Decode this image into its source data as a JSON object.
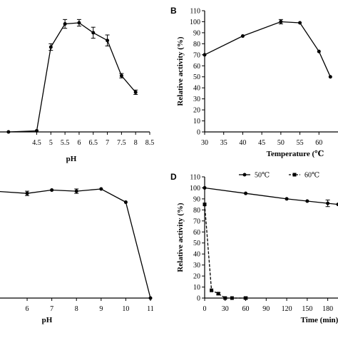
{
  "chart_data": [
    {
      "panel": "A",
      "type": "line",
      "panel_label": "",
      "xlabel": "pH",
      "ylabel": "",
      "xlim": [
        4,
        8.5
      ],
      "ylim": [
        0,
        110
      ],
      "xticks": [
        "4.5",
        "5",
        "5.5",
        "6",
        "6.5",
        "7",
        "7.5",
        "8",
        "8.5"
      ],
      "yticks": [],
      "series": [
        {
          "name": "",
          "color": "#000000",
          "x": [
            3.5,
            4.5,
            5.0,
            5.5,
            6.0,
            6.5,
            7.0,
            7.5,
            8.0
          ],
          "y": [
            0,
            1,
            77,
            98,
            99,
            90,
            83,
            51,
            36
          ],
          "err": [
            0,
            0,
            3,
            4,
            3,
            5,
            5,
            2,
            2
          ]
        }
      ]
    },
    {
      "panel": "B",
      "type": "line",
      "panel_label": "B",
      "xlabel": "Temperature (℃",
      "ylabel": "Relative activity (%)",
      "xlim": [
        30,
        65
      ],
      "ylim": [
        0,
        110
      ],
      "xticks": [
        "30",
        "35",
        "40",
        "45",
        "50",
        "55",
        "60"
      ],
      "yticks": [
        "0",
        "10",
        "20",
        "30",
        "40",
        "50",
        "60",
        "70",
        "80",
        "90",
        "100",
        "110"
      ],
      "series": [
        {
          "name": "",
          "color": "#000000",
          "x": [
            30,
            40,
            50,
            55,
            60,
            63
          ],
          "y": [
            70,
            87,
            100,
            99,
            73,
            50
          ],
          "err": [
            0,
            0,
            2,
            0,
            0,
            0
          ]
        }
      ]
    },
    {
      "panel": "C",
      "type": "line",
      "panel_label": "",
      "xlabel": "pH",
      "ylabel": "",
      "xlim": [
        5,
        11
      ],
      "ylim": [
        0,
        110
      ],
      "xticks": [
        "6",
        "7",
        "8",
        "9",
        "10",
        "11"
      ],
      "yticks": [],
      "series": [
        {
          "name": "",
          "color": "#000000",
          "x": [
            4,
            6,
            7,
            8,
            9,
            10,
            11
          ],
          "y": [
            98,
            95,
            98,
            97,
            99,
            87,
            0
          ],
          "err": [
            0,
            2,
            0,
            2,
            0,
            0,
            0
          ]
        }
      ]
    },
    {
      "panel": "D",
      "type": "line",
      "panel_label": "D",
      "xlabel": "Time (min)",
      "ylabel": "Relative activity (%)",
      "xlim": [
        0,
        195
      ],
      "ylim": [
        0,
        110
      ],
      "xticks": [
        "0",
        "30",
        "60",
        "90",
        "120",
        "150",
        "180"
      ],
      "yticks": [
        "0",
        "10",
        "20",
        "30",
        "40",
        "50",
        "60",
        "70",
        "80",
        "90",
        "100",
        "110"
      ],
      "legend": {
        "placement": "top"
      },
      "series": [
        {
          "name": "50℃",
          "color": "#000000",
          "dashed": false,
          "x": [
            0,
            60,
            120,
            150,
            180,
            195
          ],
          "y": [
            100,
            95,
            90,
            88,
            86,
            85
          ],
          "err": [
            0,
            0,
            0,
            0,
            3,
            0
          ]
        },
        {
          "name": "60℃",
          "color": "#000000",
          "dashed": true,
          "x": [
            0,
            10,
            20,
            30,
            40,
            60
          ],
          "y": [
            85,
            7,
            4,
            0,
            0,
            0
          ],
          "err": [
            0,
            0,
            1,
            0,
            0,
            1
          ]
        }
      ]
    }
  ]
}
